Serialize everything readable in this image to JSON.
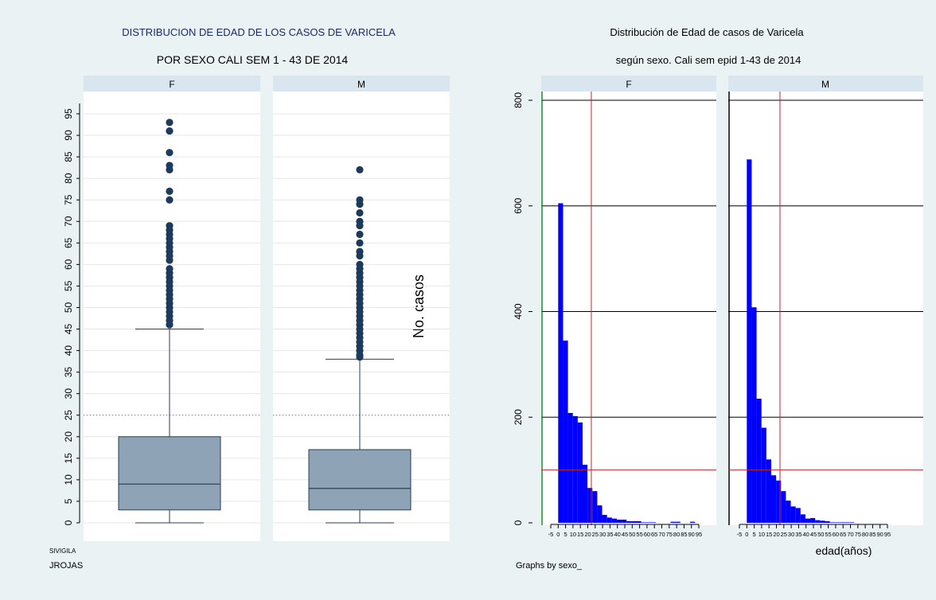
{
  "chart_data": [
    {
      "type": "box",
      "title": "DISTRIBUCION DE EDAD DE LOS CASOS DE VARICELA",
      "subtitle": "POR SEXO CALI SEM 1 - 43 DE 2014",
      "ylim": [
        0,
        95
      ],
      "yticks": [
        0,
        5,
        10,
        15,
        20,
        25,
        30,
        35,
        40,
        45,
        50,
        55,
        60,
        65,
        70,
        75,
        80,
        85,
        90,
        95
      ],
      "reference_line": 25,
      "grid": true,
      "panels": [
        {
          "label": "F",
          "min": 0,
          "q1": 3,
          "median": 9,
          "q3": 20,
          "whisker_high": 45,
          "outliers": [
            46,
            47,
            48,
            49,
            50,
            51,
            52,
            53,
            54,
            55,
            56,
            57,
            58,
            59,
            61,
            62,
            63,
            64,
            65,
            66,
            67,
            68,
            69,
            75,
            77,
            82,
            83,
            86,
            91,
            93
          ]
        },
        {
          "label": "M",
          "min": 0,
          "q1": 3,
          "median": 8,
          "q3": 17,
          "whisker_high": 38,
          "outliers": [
            38.5,
            39,
            40,
            41,
            42,
            43,
            44,
            45,
            46,
            47,
            48,
            49,
            50,
            51,
            52,
            53,
            54,
            55,
            56,
            57,
            58,
            59,
            60,
            62,
            63,
            65,
            67,
            69,
            70,
            72,
            74,
            75,
            82
          ]
        }
      ],
      "notes": [
        "SIVIGILA",
        "JROJAS"
      ]
    },
    {
      "type": "histogram",
      "title": "Distribución de Edad de casos de Varicela",
      "subtitle": "según sexo. Cali sem epid 1-43 de 2014",
      "ylabel": "No. casos",
      "xlabel": "edad(años)",
      "ylim": [
        0,
        800
      ],
      "yticks": [
        0,
        200,
        400,
        600,
        800
      ],
      "xlim": [
        -5,
        95
      ],
      "xticks": [
        -5,
        0,
        5,
        10,
        15,
        20,
        25,
        30,
        35,
        40,
        45,
        50,
        55,
        60,
        65,
        70,
        75,
        80,
        85,
        90,
        95
      ],
      "bin_width": 3.3,
      "bin_start": 0,
      "reference_y": 100,
      "reference_x": 22.4,
      "bar_color": "#0000ff",
      "panels": [
        {
          "label": "F",
          "counts": [
            605,
            345,
            208,
            202,
            190,
            110,
            66,
            60,
            33,
            15,
            10,
            8,
            6,
            6,
            3,
            3,
            3,
            1,
            1,
            1,
            0,
            0,
            0,
            2,
            2,
            0,
            0,
            2,
            0
          ]
        },
        {
          "label": "M",
          "counts": [
            688,
            408,
            235,
            180,
            120,
            90,
            80,
            60,
            42,
            31,
            28,
            16,
            8,
            9,
            5,
            4,
            3,
            1,
            1,
            1,
            1,
            1,
            0,
            0,
            0
          ]
        }
      ],
      "note": "Graphs by sexo_"
    }
  ],
  "colors": {
    "background": "#eaf2f3",
    "plot_bg": "#ffffff",
    "panel_header": "#d9e6f0",
    "box_fill": "#8fa3b6",
    "outlier": "#1b3a5c",
    "ref_dotted": "#2f8a85",
    "hist_bar": "#0000ff",
    "hist_ref": "#c0262e",
    "hist_axis_green": "#1a8a2a"
  }
}
